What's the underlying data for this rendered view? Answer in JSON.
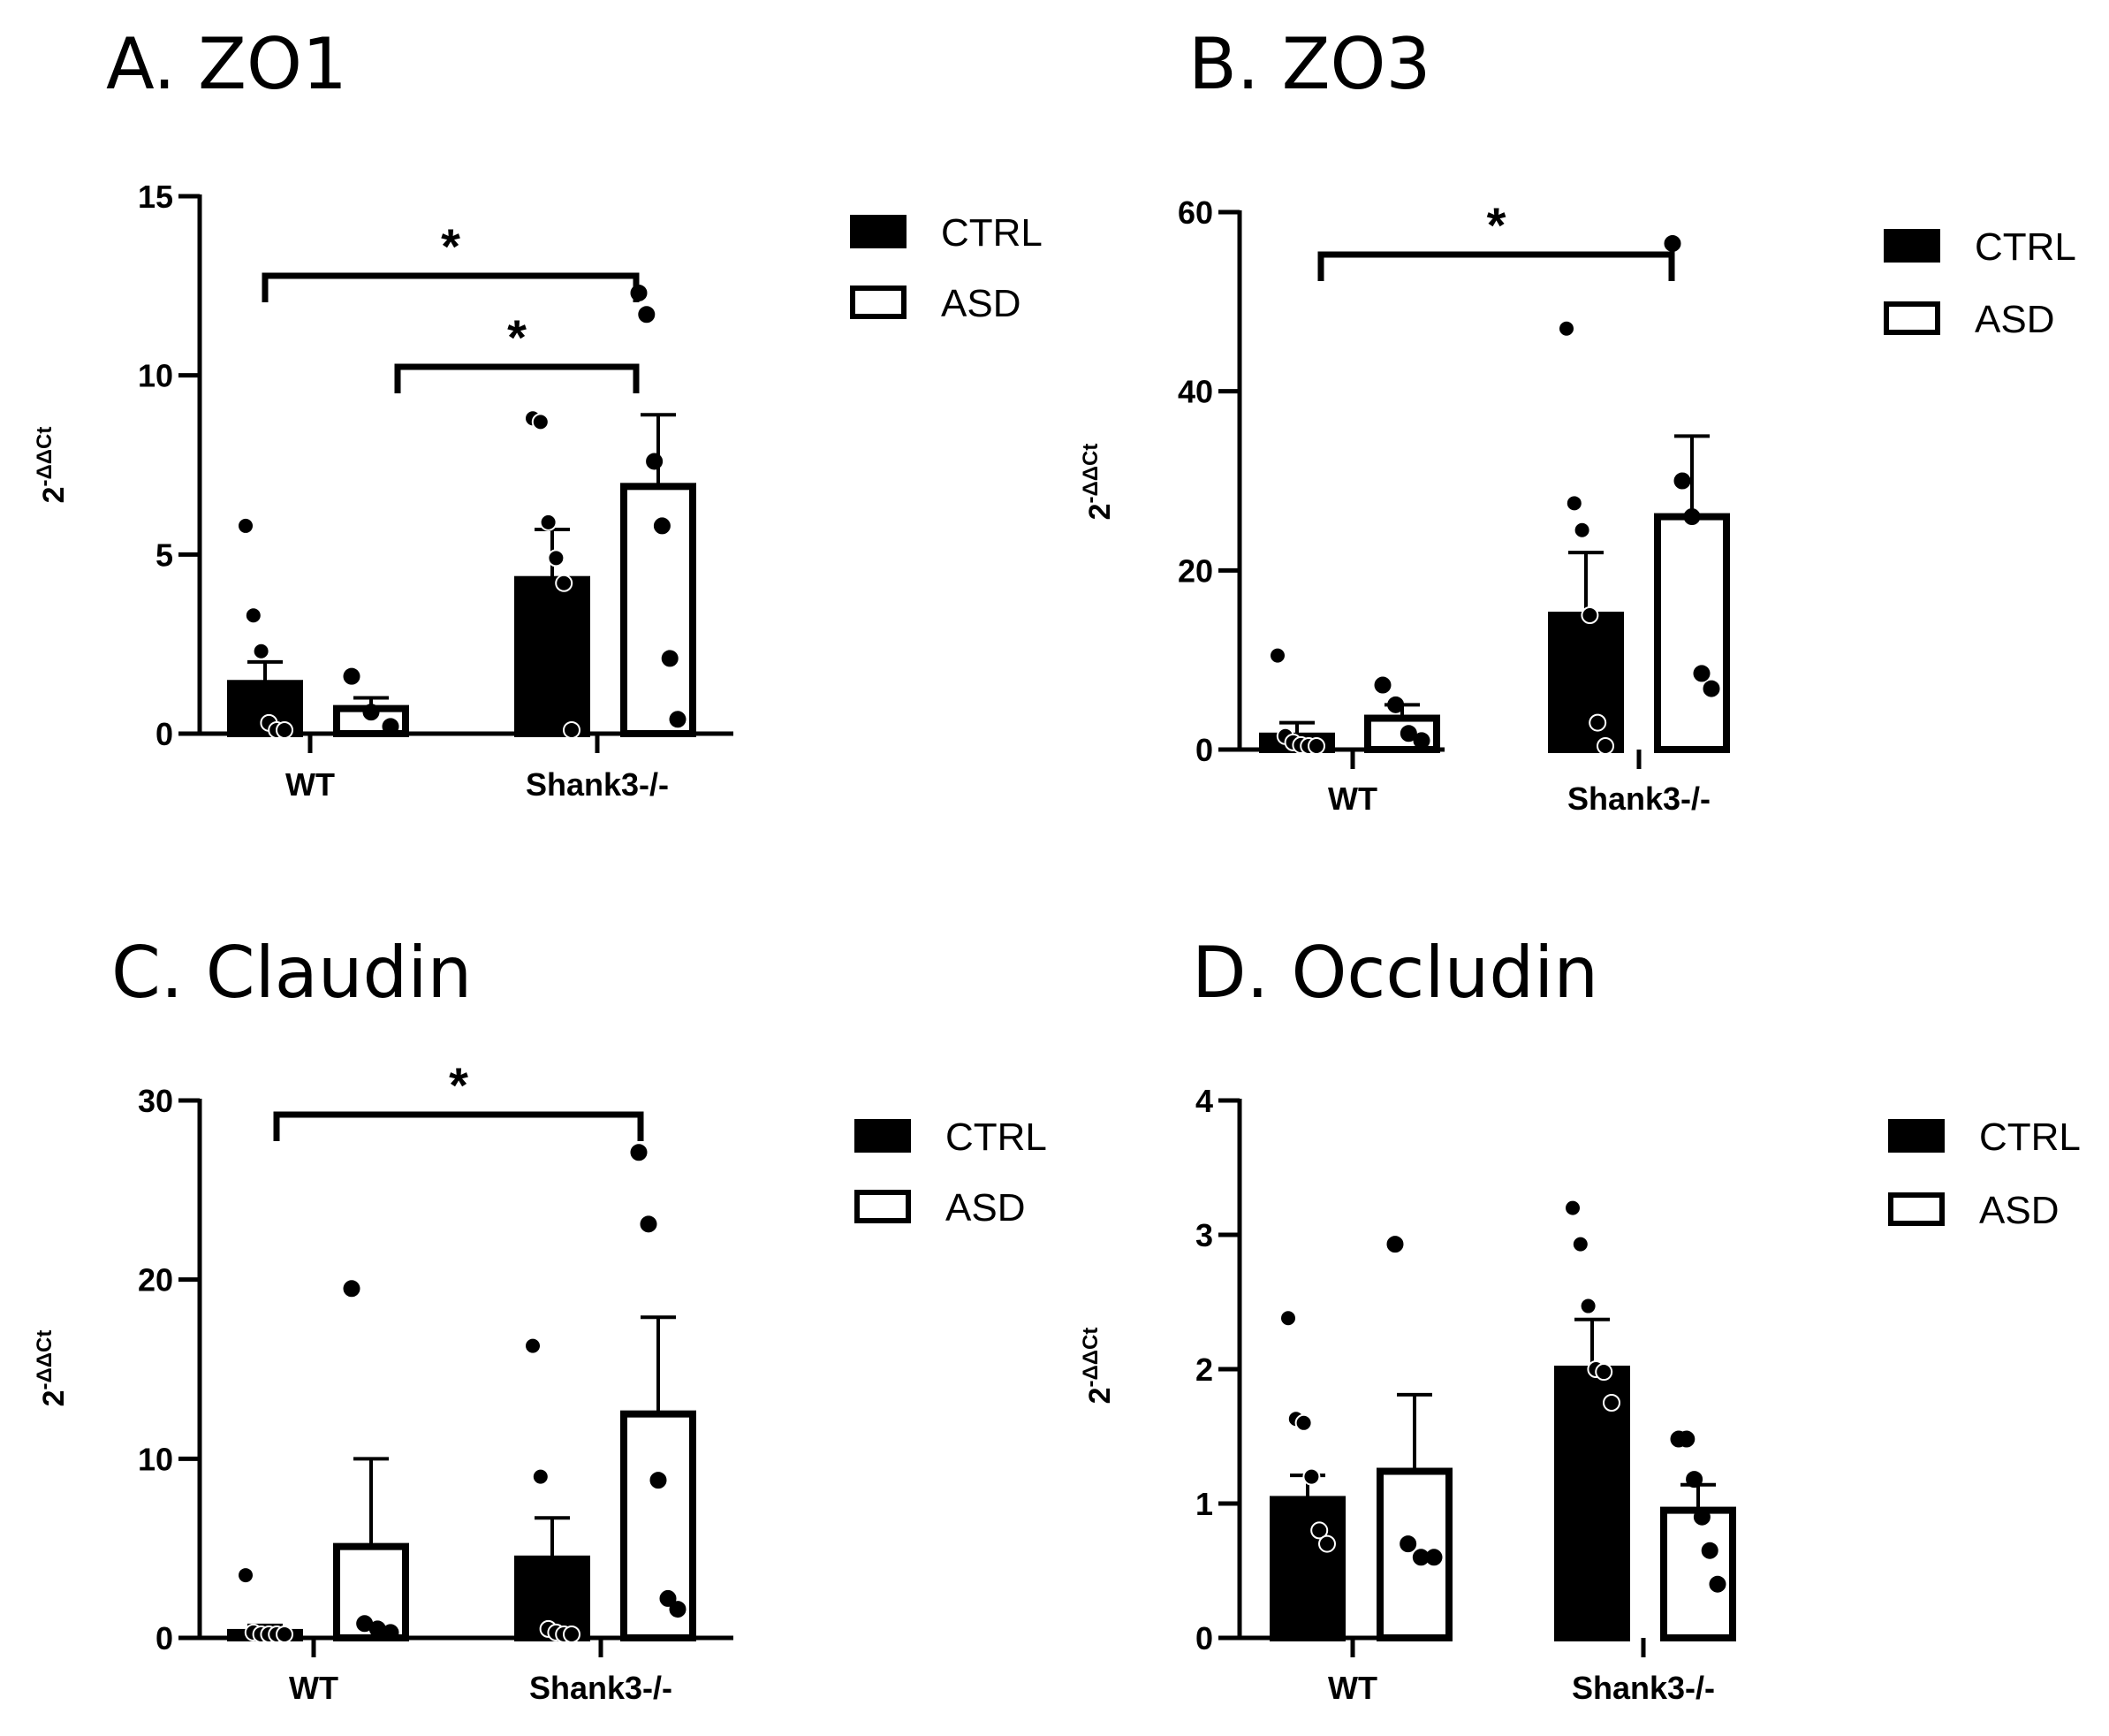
{
  "chart_data": [
    {
      "type": "bar",
      "title": "A. ZO1",
      "ylabel": "2-ΔΔCt",
      "ylim": [
        0,
        15
      ],
      "yticks": [
        0,
        5,
        10,
        15
      ],
      "categories": [
        "WT",
        "Shank3-/-"
      ],
      "legend": [
        "CTRL",
        "ASD"
      ],
      "series": [
        {
          "name": "CTRL",
          "fill": "#000000",
          "values": [
            1.4,
            4.3
          ],
          "sem": [
            0.6,
            1.4
          ],
          "points": [
            [
              5.8,
              3.3,
              2.3,
              0.3,
              0.1,
              0.05
            ],
            [
              8.8,
              8.7,
              5.9,
              4.9,
              4.2,
              0.1
            ]
          ]
        },
        {
          "name": "ASD",
          "fill": "#ffffff",
          "values": [
            0.7,
            6.9
          ],
          "sem": [
            0.3,
            2.0
          ],
          "points": [
            [
              1.6,
              0.6,
              0.2
            ],
            [
              12.3,
              11.7,
              7.6,
              5.8,
              2.1,
              0.4
            ]
          ]
        }
      ],
      "significance": [
        {
          "from": [
            "WT",
            "CTRL"
          ],
          "to": [
            "Shank3-/-",
            "ASD"
          ],
          "label": "*"
        },
        {
          "from": [
            "WT",
            "ASD"
          ],
          "to": [
            "Shank3-/-",
            "ASD"
          ],
          "label": "*"
        }
      ],
      "legend_position": "top-right"
    },
    {
      "type": "bar",
      "title": "B. ZO3",
      "ylabel": "2-ΔΔCt",
      "ylim": [
        0,
        60
      ],
      "yticks": [
        0,
        20,
        40,
        60
      ],
      "categories": [
        "WT",
        "Shank3-/-"
      ],
      "legend": [
        "CTRL",
        "ASD"
      ],
      "series": [
        {
          "name": "CTRL",
          "fill": "#000000",
          "values": [
            1.5,
            15.0
          ],
          "sem": [
            1.5,
            7.0
          ],
          "points": [
            [
              10.5,
              1.5,
              0.8,
              0.5,
              0.3,
              0.2
            ],
            [
              47.0,
              27.5,
              24.5,
              15.0,
              3.0,
              0.3
            ]
          ]
        },
        {
          "name": "ASD",
          "fill": "#ffffff",
          "values": [
            3.5,
            26.0
          ],
          "sem": [
            1.5,
            9.0
          ],
          "points": [
            [
              7.2,
              5.0,
              1.8,
              1.0
            ],
            [
              56.5,
              30.0,
              26.0,
              8.5,
              6.8
            ]
          ]
        }
      ],
      "significance": [
        {
          "from": [
            "WT",
            "CTRL"
          ],
          "to": [
            "Shank3-/-",
            "ASD"
          ],
          "label": "*"
        }
      ],
      "legend_position": "top-right"
    },
    {
      "type": "bar",
      "title": "C. Claudin",
      "ylabel": "2-ΔΔCt",
      "ylim": [
        0,
        30
      ],
      "yticks": [
        0,
        10,
        20,
        30
      ],
      "categories": [
        "WT",
        "Shank3-/-"
      ],
      "legend": [
        "CTRL",
        "ASD"
      ],
      "series": [
        {
          "name": "CTRL",
          "fill": "#000000",
          "values": [
            0.3,
            4.4
          ],
          "sem": [
            0.4,
            2.3
          ],
          "points": [
            [
              3.5,
              0.3,
              0.2,
              0.1,
              0.1,
              0.1
            ],
            [
              16.3,
              9.0,
              0.5,
              0.3,
              0.2,
              0.1
            ]
          ]
        },
        {
          "name": "ASD",
          "fill": "#ffffff",
          "values": [
            5.1,
            12.5
          ],
          "sem": [
            4.9,
            5.4
          ],
          "points": [
            [
              19.5,
              0.8,
              0.5,
              0.3
            ],
            [
              27.1,
              23.1,
              8.8,
              2.2,
              1.6
            ]
          ]
        }
      ],
      "significance": [
        {
          "from": [
            "WT",
            "CTRL"
          ],
          "to": [
            "Shank3-/-",
            "ASD"
          ],
          "label": "*"
        }
      ],
      "legend_position": "top-right"
    },
    {
      "type": "bar",
      "title": "D. Occludin",
      "ylabel": "2-ΔΔCt",
      "ylim": [
        0,
        4
      ],
      "yticks": [
        0,
        1,
        2,
        3,
        4
      ],
      "categories": [
        "WT",
        "Shank3-/-"
      ],
      "legend": [
        "CTRL",
        "ASD"
      ],
      "series": [
        {
          "name": "CTRL",
          "fill": "#000000",
          "values": [
            1.03,
            2.0
          ],
          "sem": [
            0.18,
            0.37
          ],
          "points": [
            [
              2.38,
              1.63,
              1.6,
              1.2,
              0.8,
              0.7
            ],
            [
              3.2,
              2.93,
              2.47,
              2.0,
              1.98,
              1.75
            ]
          ]
        },
        {
          "name": "ASD",
          "fill": "#ffffff",
          "values": [
            1.24,
            0.95
          ],
          "sem": [
            0.57,
            0.19
          ],
          "points": [
            [
              2.93,
              0.7,
              0.6,
              0.6
            ],
            [
              1.48,
              1.48,
              1.18,
              0.9,
              0.65,
              0.4
            ]
          ]
        }
      ],
      "significance": [],
      "legend_position": "top-right"
    }
  ]
}
